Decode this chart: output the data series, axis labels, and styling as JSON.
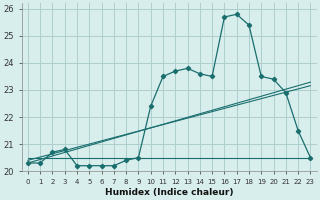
{
  "x": [
    0,
    1,
    2,
    3,
    4,
    5,
    6,
    7,
    8,
    9,
    10,
    11,
    12,
    13,
    14,
    15,
    16,
    17,
    18,
    19,
    20,
    21,
    22,
    23
  ],
  "humidex_curve": [
    20.3,
    20.3,
    20.7,
    20.8,
    20.2,
    20.2,
    20.2,
    20.2,
    20.4,
    20.5,
    22.4,
    23.5,
    23.7,
    23.8,
    23.6,
    23.5,
    25.7,
    25.8,
    25.4,
    23.5,
    23.4,
    22.9,
    21.5,
    20.5
  ],
  "linear1": [
    20.3,
    20.43,
    20.56,
    20.69,
    20.82,
    20.95,
    21.08,
    21.21,
    21.34,
    21.47,
    21.6,
    21.73,
    21.86,
    21.99,
    22.12,
    22.25,
    22.38,
    22.51,
    22.64,
    22.77,
    22.9,
    23.03,
    23.16,
    23.29
  ],
  "linear2": [
    20.4,
    20.52,
    20.64,
    20.76,
    20.88,
    21.0,
    21.12,
    21.24,
    21.36,
    21.48,
    21.6,
    21.72,
    21.84,
    21.96,
    22.08,
    22.2,
    22.32,
    22.44,
    22.56,
    22.68,
    22.8,
    22.92,
    23.04,
    23.16
  ],
  "flat_line_x": [
    0,
    23
  ],
  "flat_line_y": [
    20.5,
    20.5
  ],
  "line_color": "#1a6e6e",
  "bg_color": "#d8eeed",
  "grid_color": "#aecece",
  "xlabel": "Humidex (Indice chaleur)",
  "ylim": [
    20,
    26.2
  ],
  "xlim": [
    -0.5,
    23.5
  ],
  "yticks": [
    20,
    21,
    22,
    23,
    24,
    25,
    26
  ],
  "xtick_labels": [
    "0",
    "1",
    "2",
    "3",
    "4",
    "5",
    "6",
    "7",
    "8",
    "9",
    "10",
    "11",
    "12",
    "13",
    "14",
    "15",
    "16",
    "17",
    "18",
    "19",
    "20",
    "21",
    "22",
    "23"
  ]
}
